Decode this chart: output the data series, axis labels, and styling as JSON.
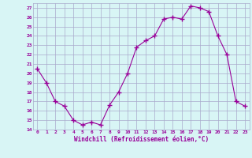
{
  "x": [
    0,
    1,
    2,
    3,
    4,
    5,
    6,
    7,
    8,
    9,
    10,
    11,
    12,
    13,
    14,
    15,
    16,
    17,
    18,
    19,
    20,
    21,
    22,
    23
  ],
  "y": [
    20.5,
    19.0,
    17.0,
    16.5,
    15.0,
    14.5,
    14.8,
    14.5,
    16.6,
    18.0,
    20.0,
    22.8,
    23.5,
    24.0,
    25.8,
    26.0,
    25.8,
    27.2,
    27.0,
    26.6,
    24.0,
    22.0,
    17.0,
    16.5
  ],
  "line_color": "#990099",
  "marker": "+",
  "markersize": 4,
  "linewidth": 0.8,
  "bg_color": "#d8f5f5",
  "grid_color": "#aaaacc",
  "xlabel": "Windchill (Refroidissement éolien,°C)",
  "xlabel_color": "#990099",
  "tick_color": "#990099",
  "ylim": [
    14,
    27.5
  ],
  "xlim": [
    -0.5,
    23.5
  ],
  "yticks": [
    14,
    15,
    16,
    17,
    18,
    19,
    20,
    21,
    22,
    23,
    24,
    25,
    26,
    27
  ],
  "xticks": [
    0,
    1,
    2,
    3,
    4,
    5,
    6,
    7,
    8,
    9,
    10,
    11,
    12,
    13,
    14,
    15,
    16,
    17,
    18,
    19,
    20,
    21,
    22,
    23
  ]
}
